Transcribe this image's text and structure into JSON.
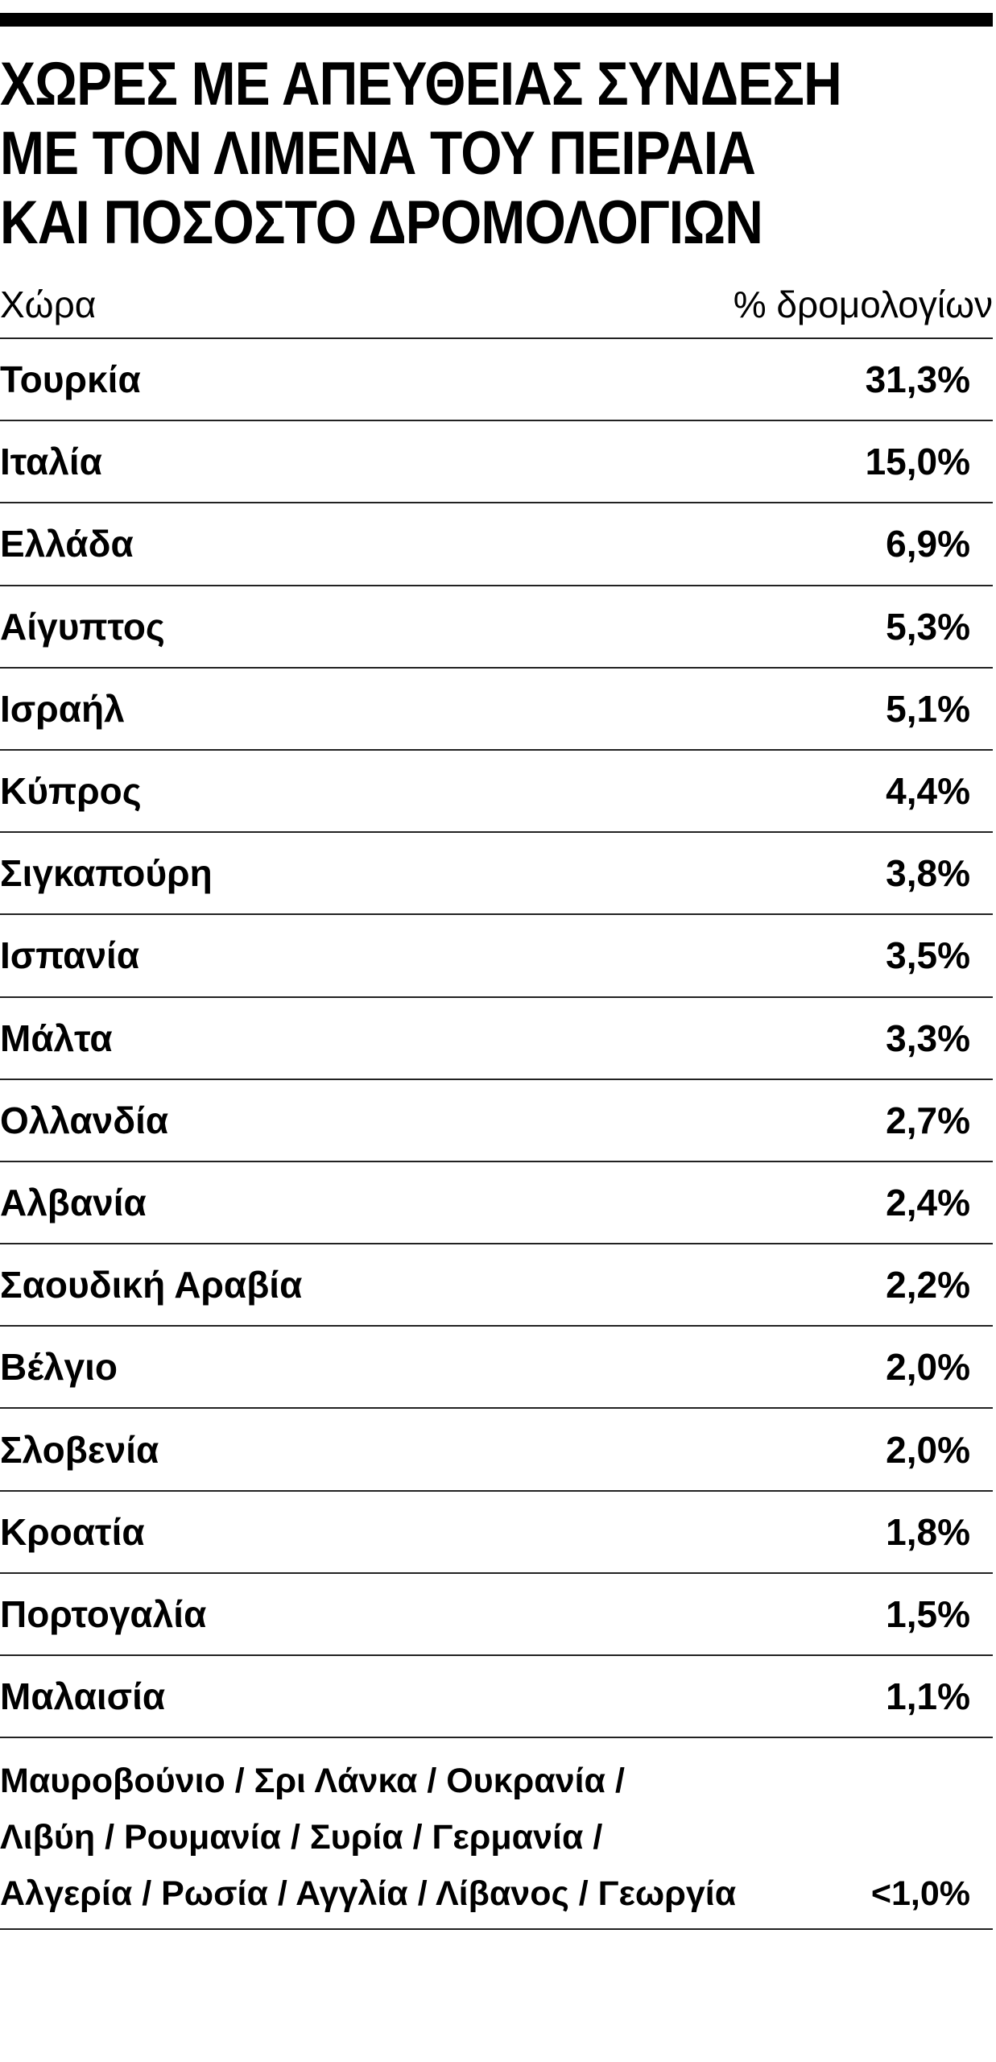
{
  "title_lines": [
    "ΧΩΡΕΣ ΜΕ ΑΠΕΥΘΕΙΑΣ ΣΥΝΔΕΣΗ",
    "ΜΕ ΤΟΝ ΛΙΜΕΝΑ ΤΟΥ ΠΕΙΡΑΙΑ",
    "ΚΑΙ ΠΟΣΟΣΤΟ ΔΡΟΜΟΛΟΓΙΩΝ"
  ],
  "table": {
    "headers": {
      "country": "Χώρα",
      "share": "% δρομολογίων"
    },
    "rows": [
      {
        "country": "Τουρκία",
        "share": "31,3%"
      },
      {
        "country": "Ιταλία",
        "share": "15,0%"
      },
      {
        "country": "Ελλάδα",
        "share": "6,9%"
      },
      {
        "country": "Αίγυπτος",
        "share": "5,3%"
      },
      {
        "country": "Ισραήλ",
        "share": "5,1%"
      },
      {
        "country": "Κύπρος",
        "share": "4,4%"
      },
      {
        "country": "Σιγκαπούρη",
        "share": "3,8%"
      },
      {
        "country": "Ισπανία",
        "share": "3,5%"
      },
      {
        "country": "Μάλτα",
        "share": "3,3%"
      },
      {
        "country": "Ολλανδία",
        "share": "2,7%"
      },
      {
        "country": "Αλβανία",
        "share": "2,4%"
      },
      {
        "country": "Σαουδική Αραβία",
        "share": "2,2%"
      },
      {
        "country": "Βέλγιο",
        "share": "2,0%"
      },
      {
        "country": "Σλοβενία",
        "share": "2,0%"
      },
      {
        "country": "Κροατία",
        "share": "1,8%"
      },
      {
        "country": "Πορτογαλία",
        "share": "1,5%"
      },
      {
        "country": "Μαλαισία",
        "share": "1,1%"
      }
    ],
    "other": {
      "lines": [
        "Μαυροβούνιο / Σρι Λάνκα / Ουκρανία /",
        "Λιβύη / Ρουμανία / Συρία / Γερμανία /",
        "Αλγερία / Ρωσία / Αγγλία / Λίβανος / Γεωργία"
      ],
      "share": "<1,0%"
    }
  }
}
